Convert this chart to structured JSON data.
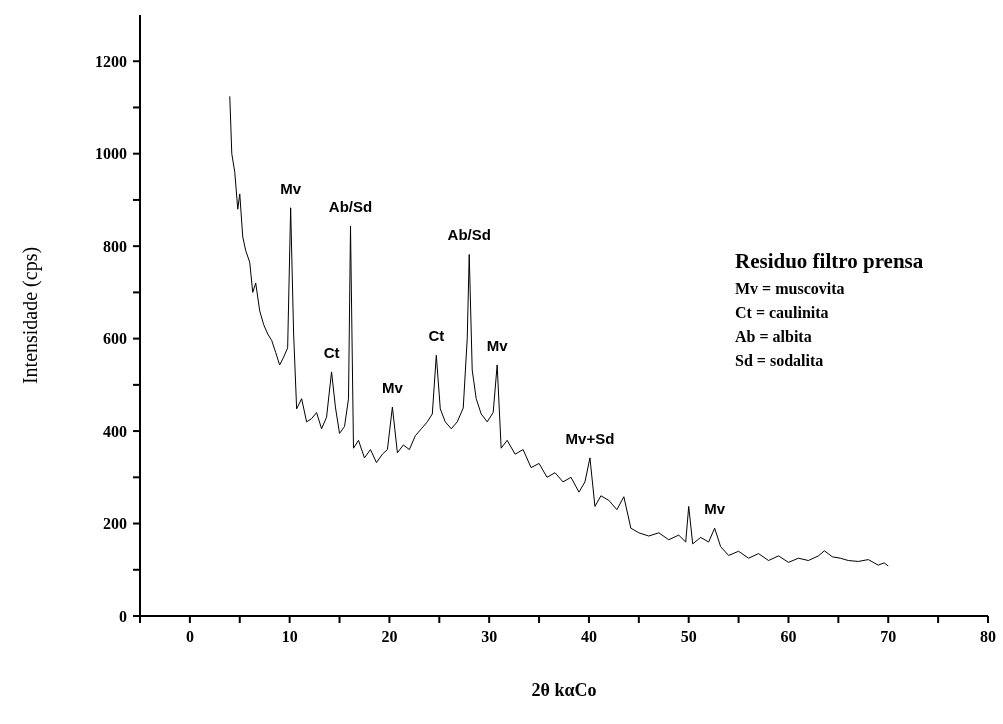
{
  "chart_data": {
    "type": "line",
    "xlabel": "2θ kαCo",
    "ylabel": "Intensidade (cps)",
    "xlim": [
      -5,
      80
    ],
    "ylim": [
      0,
      1300
    ],
    "xticks": [
      {
        "value": -5,
        "label": null
      },
      0,
      {
        "value": 5,
        "label": null
      },
      10,
      {
        "value": 15,
        "label": null
      },
      20,
      {
        "value": 25,
        "label": null
      },
      30,
      {
        "value": 35,
        "label": null
      },
      40,
      {
        "value": 45,
        "label": null
      },
      50,
      {
        "value": 55,
        "label": null
      },
      60,
      {
        "value": 65,
        "label": null
      },
      70,
      {
        "value": 75,
        "label": null
      },
      80
    ],
    "yticks": [
      0,
      {
        "value": 100,
        "label": null
      },
      200,
      {
        "value": 300,
        "label": null
      },
      400,
      {
        "value": 500,
        "label": null
      },
      600,
      {
        "value": 700,
        "label": null
      },
      800,
      {
        "value": 900,
        "label": null
      },
      1000,
      {
        "value": 1100,
        "label": null
      },
      1200
    ],
    "grid": false,
    "legend": false,
    "marker": "none",
    "line_style": "solid",
    "series": [
      {
        "color": "#000000",
        "x": [
          4.0,
          4.2,
          4.5,
          4.8,
          5.0,
          5.3,
          5.6,
          6.0,
          6.3,
          6.6,
          7.0,
          7.4,
          7.8,
          8.2,
          8.6,
          9.0,
          9.4,
          9.8,
          10.1,
          10.4,
          10.7,
          11.2,
          11.7,
          12.2,
          12.7,
          13.2,
          13.7,
          14.2,
          14.6,
          15.0,
          15.5,
          15.9,
          16.1,
          16.4,
          16.9,
          17.5,
          18.1,
          18.7,
          19.3,
          19.8,
          20.3,
          20.8,
          21.4,
          22.0,
          22.6,
          23.2,
          23.8,
          24.3,
          24.7,
          25.1,
          25.6,
          26.2,
          26.8,
          27.4,
          27.8,
          28.0,
          28.3,
          28.7,
          29.2,
          29.8,
          30.4,
          30.8,
          31.2,
          31.8,
          32.6,
          33.4,
          34.2,
          35.0,
          35.8,
          36.6,
          37.4,
          38.2,
          39.0,
          39.6,
          40.1,
          40.6,
          41.2,
          42.0,
          42.8,
          43.5,
          44.2,
          45.0,
          46.0,
          47.0,
          48.0,
          49.0,
          49.7,
          50.0,
          50.4,
          51.2,
          52.0,
          52.6,
          53.2,
          54.0,
          55.0,
          56.0,
          57.0,
          58.0,
          59.0,
          60.0,
          61.0,
          62.0,
          63.0,
          63.6,
          64.4,
          65.2,
          66.0,
          67.0,
          68.0,
          69.0,
          69.6,
          70.0
        ],
        "values": [
          1124,
          1000,
          960,
          880,
          913,
          820,
          790,
          765,
          700,
          720,
          660,
          630,
          610,
          596,
          570,
          543,
          560,
          580,
          883,
          610,
          448,
          470,
          420,
          427,
          440,
          405,
          430,
          528,
          450,
          395,
          410,
          470,
          843,
          363,
          380,
          342,
          360,
          332,
          350,
          360,
          452,
          353,
          370,
          360,
          390,
          405,
          420,
          437,
          564,
          448,
          420,
          405,
          420,
          450,
          600,
          782,
          532,
          470,
          437,
          420,
          440,
          543,
          363,
          380,
          350,
          360,
          321,
          330,
          300,
          310,
          290,
          300,
          268,
          290,
          342,
          237,
          260,
          250,
          230,
          258,
          190,
          180,
          173,
          180,
          165,
          175,
          160,
          237,
          156,
          170,
          160,
          190,
          150,
          131,
          140,
          125,
          135,
          120,
          130,
          116,
          125,
          120,
          130,
          141,
          128,
          125,
          120,
          118,
          122,
          110,
          115,
          108
        ]
      }
    ],
    "annotations": [
      {
        "text": "Mv",
        "x": 10.1,
        "y": 883
      },
      {
        "text": "Ab/Sd",
        "x": 16.1,
        "y": 843
      },
      {
        "text": "Ct",
        "x": 14.2,
        "y": 528
      },
      {
        "text": "Mv",
        "x": 20.3,
        "y": 452
      },
      {
        "text": "Ct",
        "x": 24.7,
        "y": 564
      },
      {
        "text": "Ab/Sd",
        "x": 28.0,
        "y": 782
      },
      {
        "text": "Mv",
        "x": 30.8,
        "y": 543
      },
      {
        "text": "Mv+Sd",
        "x": 40.1,
        "y": 342
      },
      {
        "text": "Mv",
        "x": 52.6,
        "y": 190
      },
      "Residuo filtro prensa",
      "Mv = muscovita",
      "Ct = caulinita",
      "Ab = albita",
      "Sd = sodalita"
    ]
  }
}
